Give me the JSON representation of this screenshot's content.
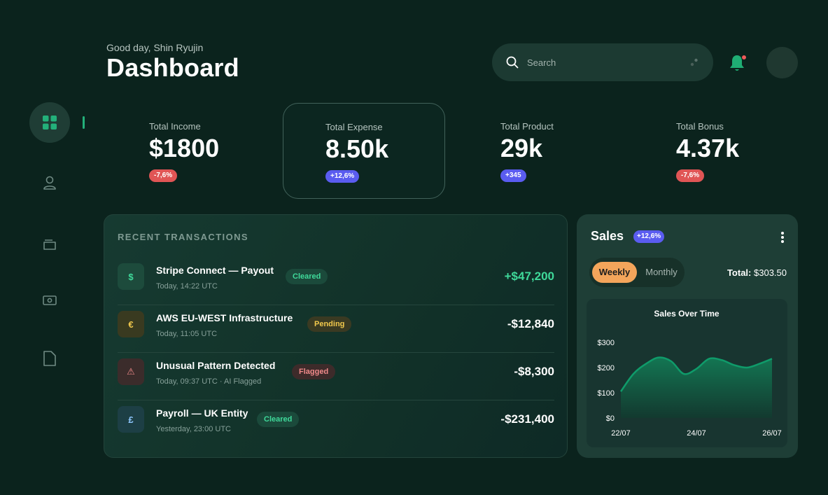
{
  "header": {
    "greeting": "Good day, Shin Ryujin",
    "title": "Dashboard",
    "search_placeholder": "Search"
  },
  "sidebar": {
    "items": [
      {
        "name": "dashboard",
        "icon": "grid-icon",
        "active": true
      },
      {
        "name": "users",
        "icon": "user-icon",
        "active": false
      },
      {
        "name": "wallet",
        "icon": "wallet-icon",
        "active": false
      },
      {
        "name": "payments",
        "icon": "cash-icon",
        "active": false
      },
      {
        "name": "documents",
        "icon": "document-icon",
        "active": false
      }
    ]
  },
  "stats": [
    {
      "label": "Total Income",
      "value": "$1800",
      "change": "-7,6%",
      "tone": "red"
    },
    {
      "label": "Total Expense",
      "value": "8.50k",
      "change": "+12,6%",
      "tone": "blue"
    },
    {
      "label": "Total Product",
      "value": "29k",
      "change": "+345",
      "tone": "blue"
    },
    {
      "label": "Total Bonus",
      "value": "4.37k",
      "change": "-7,6%",
      "tone": "red"
    }
  ],
  "transactions": {
    "title": "RECENT TRANSACTIONS",
    "rows": [
      {
        "icon": "$",
        "name": "Stripe Connect — Payout",
        "sub": "Today, 14:22 UTC",
        "status": "Cleared",
        "amount": "+$47,200"
      },
      {
        "icon": "€",
        "name": "AWS EU-WEST Infrastructure",
        "sub": "Today, 11:05 UTC",
        "status": "Pending",
        "amount": "-$12,840"
      },
      {
        "icon": "⚠",
        "name": "Unusual Pattern Detected",
        "sub": "Today, 09:37 UTC · AI Flagged",
        "status": "Flagged",
        "amount": "-$8,300"
      },
      {
        "icon": "£",
        "name": "Payroll — UK Entity",
        "sub": "Yesterday, 23:00 UTC",
        "status": "Cleared",
        "amount": "-$231,400"
      }
    ]
  },
  "sales": {
    "title": "Sales",
    "badge": "+12,6%",
    "tabs": [
      "Weekly",
      "Monthly"
    ],
    "active_tab": "Weekly",
    "total_label": "Total:",
    "total_value": "$303.50"
  },
  "chart_data": {
    "type": "area",
    "title": "Sales Over Time",
    "x_tick_labels": [
      "22/07",
      "24/07",
      "26/07"
    ],
    "y_tick_labels": [
      "$0",
      "$100",
      "$200",
      "$300"
    ],
    "ylim": [
      0,
      300
    ],
    "x": [
      0,
      0.5,
      1,
      1.5,
      2,
      2.5,
      3,
      3.5,
      4,
      4.5,
      5,
      5.5,
      6
    ],
    "values": [
      105,
      175,
      215,
      240,
      225,
      175,
      195,
      235,
      230,
      210,
      200,
      215,
      235
    ],
    "grid": false,
    "color": "#0f9b6a"
  }
}
